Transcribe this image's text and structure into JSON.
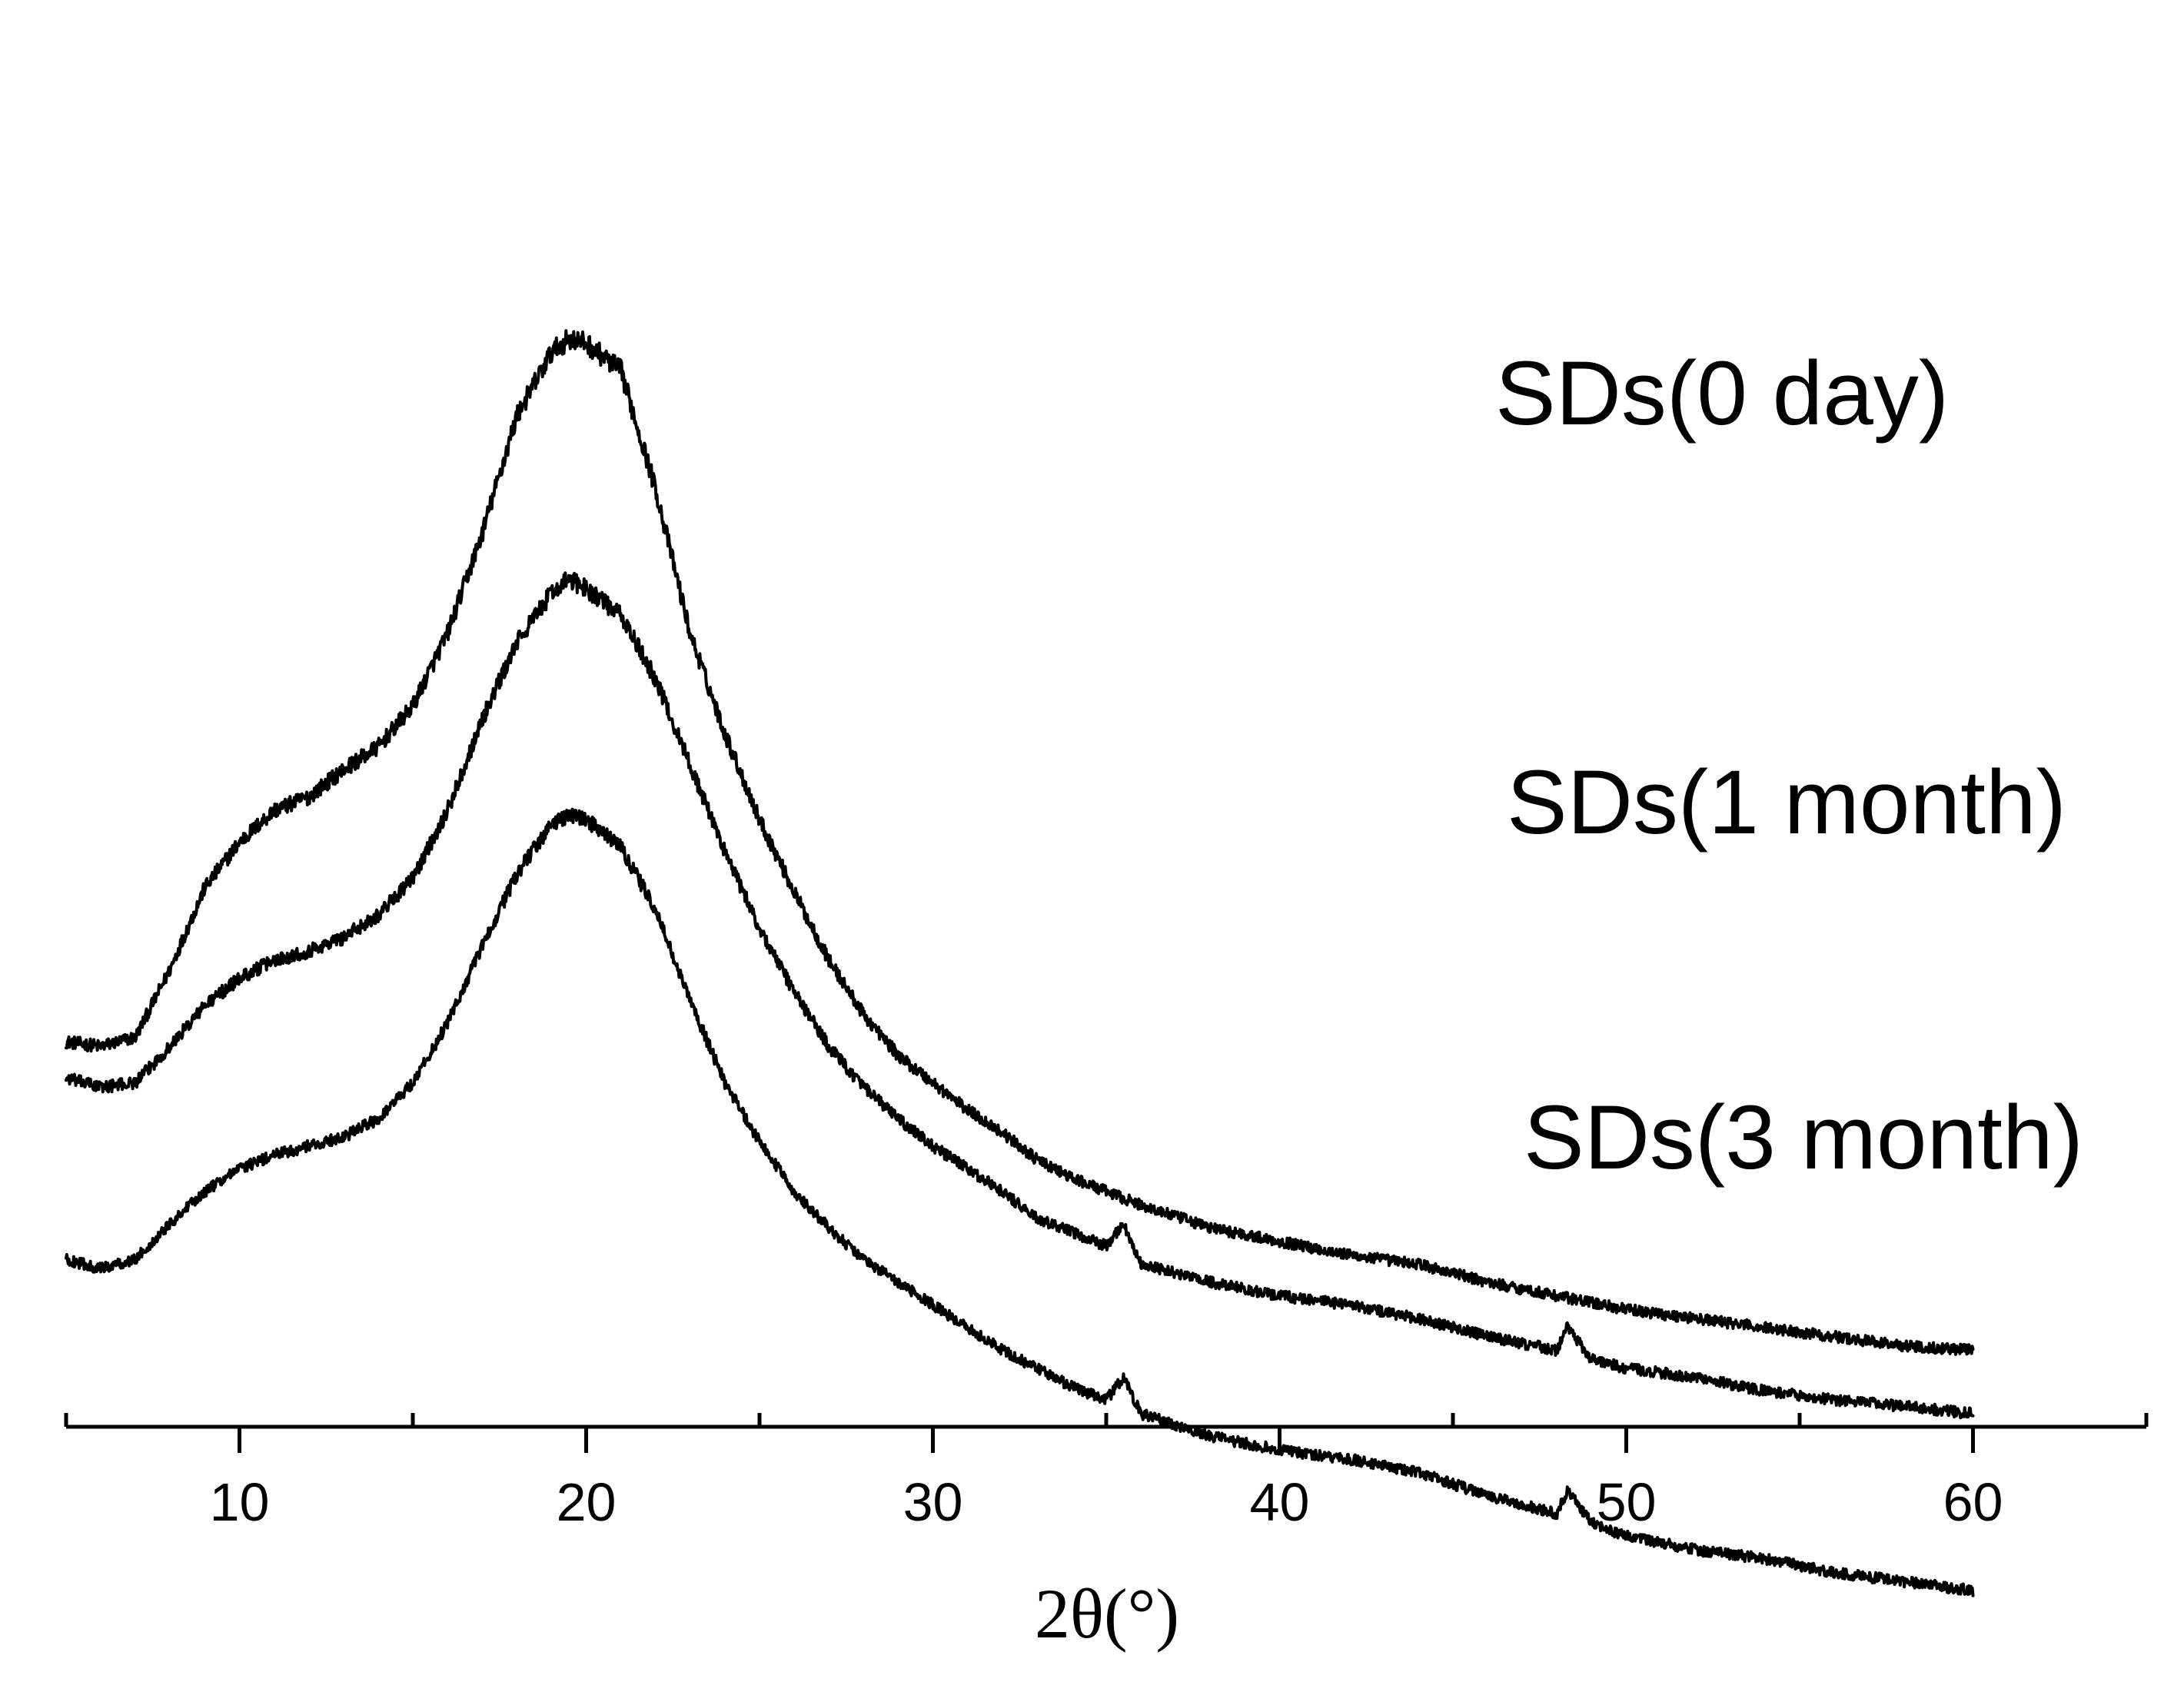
{
  "chart_data": {
    "type": "line",
    "title": "",
    "xlabel": "2θ(°)",
    "ylabel": "",
    "xlim": [
      5,
      65
    ],
    "x_ticks": [
      10,
      20,
      30,
      40,
      50,
      60
    ],
    "x_tick_labels": [
      "10",
      "20",
      "30",
      "40",
      "50",
      "60"
    ],
    "x_minor_ticks": [
      5,
      15,
      25,
      35,
      45,
      55,
      65
    ],
    "y_axis_shown": false,
    "grid": false,
    "legend": "inline labels at right of each trace",
    "stacked_offset": true,
    "x_range_data": [
      5,
      60
    ],
    "series": [
      {
        "name": "SDs(0 day)",
        "key_points": [
          [
            5,
            3.6
          ],
          [
            6,
            3.55
          ],
          [
            7,
            3.65
          ],
          [
            8,
            4.4
          ],
          [
            9,
            5.3
          ],
          [
            10,
            5.8
          ],
          [
            11,
            6.15
          ],
          [
            12,
            6.3
          ],
          [
            13,
            6.6
          ],
          [
            14,
            6.85
          ],
          [
            15,
            7.3
          ],
          [
            16,
            8.1
          ],
          [
            17,
            9.2
          ],
          [
            18,
            10.5
          ],
          [
            19,
            11.2
          ],
          [
            19.5,
            11.35
          ],
          [
            20,
            11.3
          ],
          [
            21,
            11.0
          ],
          [
            22,
            9.7
          ],
          [
            23,
            8.1
          ],
          [
            24,
            7.0
          ],
          [
            25,
            6.05
          ],
          [
            26,
            5.25
          ],
          [
            27,
            4.5
          ],
          [
            28,
            3.9
          ],
          [
            29,
            3.45
          ],
          [
            30,
            3.15
          ],
          [
            31,
            2.85
          ],
          [
            32,
            2.6
          ],
          [
            33,
            2.3
          ],
          [
            34,
            2.1
          ],
          [
            35,
            1.95
          ],
          [
            36,
            1.8
          ],
          [
            38,
            1.55
          ],
          [
            40,
            1.4
          ],
          [
            42,
            1.25
          ],
          [
            44,
            1.15
          ],
          [
            46,
            0.95
          ],
          [
            48,
            0.8
          ],
          [
            50,
            0.65
          ],
          [
            52,
            0.55
          ],
          [
            54,
            0.45
          ],
          [
            56,
            0.35
          ],
          [
            58,
            0.25
          ],
          [
            60,
            0.2
          ]
        ]
      },
      {
        "name": "SDs(1 month)",
        "key_points": [
          [
            5,
            3.2
          ],
          [
            6,
            3.1
          ],
          [
            7,
            3.15
          ],
          [
            8,
            3.55
          ],
          [
            9,
            4.0
          ],
          [
            10,
            4.3
          ],
          [
            11,
            4.5
          ],
          [
            12,
            4.6
          ],
          [
            13,
            4.75
          ],
          [
            14,
            5.0
          ],
          [
            15,
            5.4
          ],
          [
            16,
            6.15
          ],
          [
            17,
            7.15
          ],
          [
            18,
            8.0
          ],
          [
            19,
            8.55
          ],
          [
            19.5,
            8.7
          ],
          [
            20,
            8.6
          ],
          [
            21,
            8.3
          ],
          [
            22,
            7.6
          ],
          [
            23,
            6.65
          ],
          [
            24,
            5.7
          ],
          [
            25,
            4.85
          ],
          [
            26,
            4.15
          ],
          [
            27,
            3.55
          ],
          [
            28,
            3.1
          ],
          [
            29,
            2.75
          ],
          [
            30,
            2.45
          ],
          [
            31,
            2.2
          ],
          [
            32,
            1.95
          ],
          [
            33,
            1.65
          ],
          [
            34,
            1.5
          ],
          [
            35,
            1.35
          ],
          [
            35.5,
            1.6
          ],
          [
            36,
            1.15
          ],
          [
            38,
            0.95
          ],
          [
            40,
            0.8
          ],
          [
            42,
            0.7
          ],
          [
            44,
            0.55
          ],
          [
            46,
            0.35
          ],
          [
            48,
            0.2
          ],
          [
            48.3,
            0.45
          ],
          [
            49,
            0.1
          ],
          [
            50,
            0.0
          ],
          [
            52,
            -0.1
          ],
          [
            54,
            -0.25
          ],
          [
            56,
            -0.35
          ],
          [
            58,
            -0.42
          ],
          [
            60,
            -0.5
          ]
        ]
      },
      {
        "name": "SDs(3 month)",
        "key_points": [
          [
            5,
            1.2
          ],
          [
            6,
            1.1
          ],
          [
            7,
            1.2
          ],
          [
            8,
            1.6
          ],
          [
            9,
            1.95
          ],
          [
            10,
            2.2
          ],
          [
            11,
            2.35
          ],
          [
            12,
            2.45
          ],
          [
            13,
            2.55
          ],
          [
            14,
            2.75
          ],
          [
            15,
            3.15
          ],
          [
            16,
            3.8
          ],
          [
            17,
            4.65
          ],
          [
            18,
            5.45
          ],
          [
            19,
            6.0
          ],
          [
            19.5,
            6.1
          ],
          [
            20,
            6.05
          ],
          [
            21,
            5.75
          ],
          [
            22,
            5.05
          ],
          [
            23,
            4.05
          ],
          [
            24,
            3.15
          ],
          [
            25,
            2.5
          ],
          [
            26,
            1.95
          ],
          [
            27,
            1.55
          ],
          [
            28,
            1.2
          ],
          [
            29,
            0.95
          ],
          [
            30,
            0.7
          ],
          [
            31,
            0.45
          ],
          [
            32,
            0.2
          ],
          [
            33,
            0.0
          ],
          [
            34,
            -0.2
          ],
          [
            35,
            -0.35
          ],
          [
            35.5,
            -0.1
          ],
          [
            36,
            -0.5
          ],
          [
            38,
            -0.75
          ],
          [
            40,
            -0.9
          ],
          [
            42,
            -1.0
          ],
          [
            44,
            -1.15
          ],
          [
            46,
            -1.4
          ],
          [
            48,
            -1.6
          ],
          [
            48.3,
            -1.35
          ],
          [
            49,
            -1.7
          ],
          [
            50,
            -1.85
          ],
          [
            52,
            -2.0
          ],
          [
            54,
            -2.1
          ],
          [
            56,
            -2.25
          ],
          [
            58,
            -2.35
          ],
          [
            60,
            -2.45
          ]
        ]
      }
    ]
  }
}
